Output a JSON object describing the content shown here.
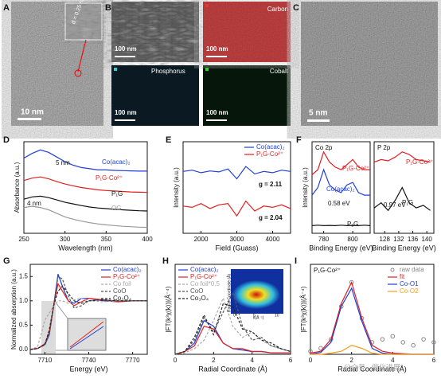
{
  "panel_labels": [
    "A",
    "B",
    "C",
    "D",
    "E",
    "F",
    "G",
    "H",
    "I"
  ],
  "panels": {
    "A": {
      "scale": "10 nm",
      "inset": "d = 0.25 nm"
    },
    "B": {
      "tiles": [
        {
          "name": null,
          "scale": "100 nm"
        },
        {
          "name": "Carbon",
          "scale": "100 nm"
        },
        {
          "name": "Phosphorus",
          "scale": "100 nm"
        },
        {
          "name": "Cobalt",
          "scale": "100 nm"
        }
      ]
    },
    "C": {
      "scale": "5 nm"
    }
  },
  "chart_data": [
    {
      "type": "line",
      "xlabel": "Wavelength (nm)",
      "ylabel": "Absorbance (a.u.)",
      "xlim": [
        250,
        400
      ],
      "xticks": [
        250,
        300,
        350,
        400
      ],
      "ylim": [
        0.3,
        4.2
      ],
      "x": [
        250,
        260,
        270,
        280,
        290,
        300,
        310,
        320,
        330,
        340,
        350,
        360,
        370,
        380,
        390,
        400
      ],
      "series": [
        {
          "name": "Co(acac)₂",
          "color": "#1f3fd6",
          "values": [
            3.5,
            3.7,
            3.85,
            3.75,
            3.55,
            3.35,
            3.2,
            3.1,
            3.05,
            3.0,
            3.0,
            2.98,
            2.97,
            2.96,
            2.95,
            2.95
          ]
        },
        {
          "name": "P₁G-Co²⁺",
          "color": "#e02020",
          "values": [
            2.55,
            2.65,
            2.7,
            2.62,
            2.5,
            2.4,
            2.32,
            2.25,
            2.2,
            2.15,
            2.12,
            2.1,
            2.08,
            2.06,
            2.05,
            2.04
          ]
        },
        {
          "name": "P₁G",
          "color": "#111111",
          "values": [
            1.75,
            1.85,
            1.88,
            1.82,
            1.72,
            1.62,
            1.55,
            1.48,
            1.42,
            1.38,
            1.35,
            1.32,
            1.3,
            1.28,
            1.26,
            1.25
          ]
        },
        {
          "name": "OG",
          "color": "#999999",
          "values": [
            1.4,
            1.45,
            1.4,
            1.3,
            1.15,
            1.0,
            0.9,
            0.82,
            0.75,
            0.7,
            0.66,
            0.63,
            0.6,
            0.58,
            0.56,
            0.55
          ]
        }
      ],
      "annotations": [
        {
          "text": "4 nm"
        },
        {
          "text": "5 nm"
        }
      ]
    },
    {
      "type": "line",
      "xlabel": "Field (Guass)",
      "ylabel": "Intensity (a.u.)",
      "xlim": [
        1500,
        4500
      ],
      "xticks": [
        2000,
        3000,
        4000
      ],
      "ylim": [
        0.5,
        4.2
      ],
      "legend": "upper right",
      "x": [
        1500,
        1750,
        2000,
        2250,
        2500,
        2750,
        3000,
        3250,
        3500,
        3750,
        4000,
        4250,
        4500
      ],
      "series": [
        {
          "name": "Co(acac)₂",
          "color": "#1f3fd6",
          "values": [
            3.0,
            3.05,
            2.95,
            3.02,
            2.98,
            3.1,
            2.7,
            3.2,
            2.9,
            3.0,
            2.95,
            3.05,
            3.0
          ]
        },
        {
          "name": "P₁G-Co²⁺",
          "color": "#e02020",
          "values": [
            1.6,
            1.55,
            1.7,
            1.5,
            1.65,
            1.7,
            1.2,
            1.8,
            1.4,
            1.6,
            1.55,
            1.65,
            1.5
          ]
        }
      ],
      "annotations": [
        {
          "text": "g = 2.11"
        },
        {
          "text": "g = 2.04"
        }
      ]
    },
    {
      "type": "line",
      "title": "Co 2p",
      "xlabel": "Binding Energy (eV)",
      "ylabel": "Intensity (a.u.)",
      "xlim": [
        772,
        812
      ],
      "xticks": [
        780,
        800
      ],
      "ylim": [
        0,
        3.6
      ],
      "x": [
        772,
        776,
        780,
        784,
        788,
        792,
        796,
        800,
        804,
        808,
        812
      ],
      "series": [
        {
          "name": "P₁G-Co²⁺",
          "color": "#e02020",
          "values": [
            2.3,
            2.5,
            3.2,
            2.8,
            2.6,
            2.5,
            2.7,
            2.9,
            2.6,
            2.5,
            2.5
          ]
        },
        {
          "name": "Co(acac)₂",
          "color": "#1f3fd6",
          "values": [
            1.5,
            1.8,
            2.5,
            1.9,
            1.7,
            1.6,
            1.9,
            2.0,
            1.6,
            1.5,
            1.5
          ]
        },
        {
          "name": "P₁G",
          "color": "#111111",
          "values": [
            0.3,
            0.32,
            0.3,
            0.31,
            0.3,
            0.32,
            0.3,
            0.31,
            0.3,
            0.32,
            0.3
          ]
        }
      ],
      "annotations": [
        {
          "text": "0.58 eV"
        }
      ]
    },
    {
      "type": "line",
      "title": "P 2p",
      "xlabel": "Binding Energy (eV)",
      "xlim": [
        125,
        142
      ],
      "xticks": [
        128,
        132,
        136,
        140
      ],
      "ylim": [
        0,
        3.6
      ],
      "x": [
        125,
        127,
        129,
        131,
        133,
        135,
        137,
        139,
        141
      ],
      "series": [
        {
          "name": "P₁G-Co²⁺",
          "color": "#e02020",
          "values": [
            2.8,
            2.9,
            2.85,
            3.0,
            3.2,
            3.1,
            2.9,
            2.85,
            2.8
          ]
        },
        {
          "name": "P₁G",
          "color": "#111111",
          "values": [
            1.0,
            1.2,
            0.9,
            1.3,
            1.8,
            1.2,
            1.0,
            1.1,
            0.9
          ]
        }
      ],
      "annotations": [
        {
          "text": "0.97 eV"
        }
      ]
    },
    {
      "type": "line",
      "xlabel": "Energy (eV)",
      "ylabel": "Normalized absorption (a.u.)",
      "xlim": [
        7700,
        7780
      ],
      "xticks": [
        7710,
        7740,
        7770
      ],
      "ylim": [
        -0.1,
        1.75
      ],
      "yticks": [
        {
          "value": 0,
          "label": "0.0"
        },
        0.5,
        {
          "value": 1,
          "label": "1.0"
        },
        1.5
      ],
      "legend": "upper right",
      "x": [
        7700,
        7705,
        7710,
        7713,
        7716,
        7719,
        7722,
        7726,
        7730,
        7735,
        7740,
        7750,
        7760,
        7770,
        7780
      ],
      "series": [
        {
          "name": "Co(acac)₂",
          "color": "#1f3fd6",
          "values": [
            0,
            0.02,
            0.1,
            0.3,
            0.9,
            1.55,
            1.3,
            1.0,
            0.95,
            1.05,
            1.05,
            1.0,
            0.98,
            1.0,
            1.0
          ]
        },
        {
          "name": "P₁G-Co²⁺",
          "color": "#e02020",
          "values": [
            0,
            0.02,
            0.12,
            0.35,
            0.9,
            1.35,
            1.2,
            1.0,
            0.9,
            0.98,
            1.05,
            1.02,
            0.98,
            1.0,
            1.0
          ]
        },
        {
          "name": "Co foil",
          "color": "#aaaaaa",
          "dash": true,
          "values": [
            0,
            0.05,
            0.6,
            0.75,
            0.9,
            1.0,
            1.0,
            0.95,
            1.02,
            1.05,
            1.0,
            0.98,
            1.0,
            1.0,
            1.0
          ]
        },
        {
          "name": "CoO",
          "color": "#555555",
          "dash": true,
          "values": [
            0,
            0.02,
            0.1,
            0.3,
            0.9,
            1.5,
            1.45,
            1.1,
            0.85,
            0.9,
            1.0,
            1.02,
            1.0,
            1.0,
            1.0
          ]
        },
        {
          "name": "Co₃O₄",
          "color": "#222222",
          "dash": true,
          "values": [
            0,
            0.02,
            0.1,
            0.4,
            0.9,
            1.2,
            1.3,
            1.15,
            1.0,
            0.95,
            1.0,
            1.02,
            1.0,
            1.0,
            1.0
          ]
        }
      ]
    },
    {
      "type": "line",
      "xlabel": "Radial Coordinate (Å)",
      "ylabel": "|FT(k³χ(k))|(Å⁻⁴)",
      "xlim": [
        0,
        6
      ],
      "xticks": [
        0,
        2,
        4,
        6
      ],
      "ylim": [
        0,
        3.2
      ],
      "legend": "upper left",
      "x": [
        0,
        0.5,
        1,
        1.5,
        2,
        2.5,
        3,
        3.5,
        4,
        4.5,
        5,
        5.5,
        6
      ],
      "series": [
        {
          "name": "Co(acac)₂",
          "color": "#1f3fd6",
          "values": [
            0,
            0.1,
            0.4,
            1.2,
            1.0,
            0.4,
            0.2,
            0.15,
            0.1,
            0.1,
            0.05,
            0.05,
            0.05
          ]
        },
        {
          "name": "P₁G-Co²⁺",
          "color": "#e02020",
          "values": [
            0,
            0.1,
            0.3,
            1.0,
            0.9,
            0.4,
            0.2,
            0.2,
            0.1,
            0.1,
            0.05,
            0.05,
            0.05
          ]
        },
        {
          "name": "Co foil*0.5",
          "color": "#aaaaaa",
          "dash": true,
          "values": [
            0,
            0.05,
            0.2,
            0.5,
            1.2,
            2.0,
            1.0,
            0.6,
            0.8,
            0.5,
            0.3,
            0.2,
            0.1
          ]
        },
        {
          "name": "CoO",
          "color": "#555555",
          "dash": true,
          "values": [
            0,
            0.1,
            0.5,
            1.3,
            0.8,
            1.5,
            2.2,
            1.0,
            0.5,
            0.6,
            0.3,
            0.2,
            0.1
          ]
        },
        {
          "name": "Co₃O₄",
          "color": "#222222",
          "dash": true,
          "values": [
            0,
            0.1,
            0.6,
            1.4,
            0.7,
            1.8,
            1.7,
            0.9,
            0.8,
            0.5,
            0.4,
            0.2,
            0.1
          ]
        }
      ],
      "annotations": [
        {
          "text": "Radial Coordinate (Å)"
        },
        {
          "text": "k(Å⁻¹)"
        },
        {
          "text": "0"
        },
        {
          "text": "5"
        },
        {
          "text": "10"
        }
      ]
    },
    {
      "type": "line",
      "title": "P₁G-Co²⁺",
      "xlabel": "Radial Coordinate (Å)",
      "ylabel": "|FT(k³χ(k))|(Å⁻⁴)",
      "xlim": [
        0,
        6
      ],
      "xticks": [
        0,
        2,
        4,
        6
      ],
      "ylim": [
        0,
        1.5
      ],
      "legend": "upper right",
      "x": [
        0,
        0.5,
        1,
        1.5,
        2,
        2.5,
        3,
        3.5,
        4,
        4.5,
        5,
        5.5,
        6
      ],
      "series": [
        {
          "name": "raw data",
          "color": "#888888",
          "marker": "circle",
          "values": [
            0.05,
            0.1,
            0.25,
            0.8,
            1.2,
            0.6,
            0.2,
            0.25,
            0.3,
            0.2,
            0.15,
            0.25,
            0.2
          ]
        },
        {
          "name": "fit",
          "color": "#e02020",
          "values": [
            0.02,
            0.05,
            0.25,
            0.85,
            1.2,
            0.6,
            0.15,
            0.05,
            0.02,
            0.01,
            0,
            0,
            0
          ]
        },
        {
          "name": "Co-O1",
          "color": "#1f3fd6",
          "values": [
            0,
            0.03,
            0.2,
            0.8,
            1.1,
            0.55,
            0.1,
            0.02,
            0,
            0,
            0,
            0,
            0
          ]
        },
        {
          "name": "Co-O2",
          "color": "#f0a020",
          "values": [
            0,
            0,
            0.02,
            0.05,
            0.15,
            0.1,
            0.02,
            0,
            0,
            0,
            0,
            0,
            0
          ]
        }
      ],
      "annotations": [
        {
          "text": "公众号 · 催化进展"
        }
      ]
    }
  ]
}
